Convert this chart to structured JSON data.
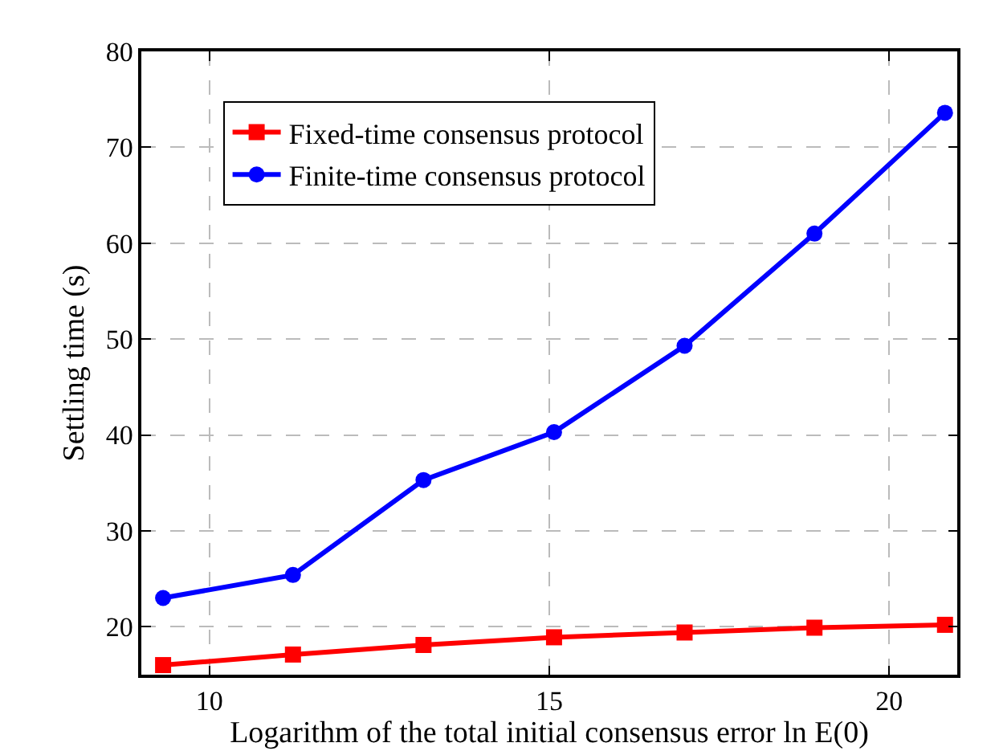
{
  "chart_data": {
    "type": "line",
    "xlabel": "Logarithm of the total initial consensus error ln E(0)",
    "ylabel": "Settling time (s)",
    "x": [
      9.32,
      11.23,
      13.15,
      15.07,
      16.99,
      18.9,
      20.82
    ],
    "series": [
      {
        "name": "Fixed-time consensus protocol",
        "color": "#ff0000",
        "marker": "square",
        "values": [
          16.0,
          17.1,
          18.1,
          18.9,
          19.4,
          19.9,
          20.2
        ]
      },
      {
        "name": "Finite-time consensus protocol",
        "color": "#0000ff",
        "marker": "circle",
        "values": [
          23.0,
          25.4,
          35.3,
          40.3,
          49.3,
          61.0,
          73.6
        ]
      }
    ],
    "xlim": [
      9,
      21
    ],
    "xticks": [
      10,
      15,
      20
    ],
    "ylim": [
      15,
      80
    ],
    "yticks": [
      20,
      30,
      40,
      50,
      60,
      70,
      80
    ],
    "grid": true,
    "legend": "top left",
    "line_style": "solid"
  }
}
